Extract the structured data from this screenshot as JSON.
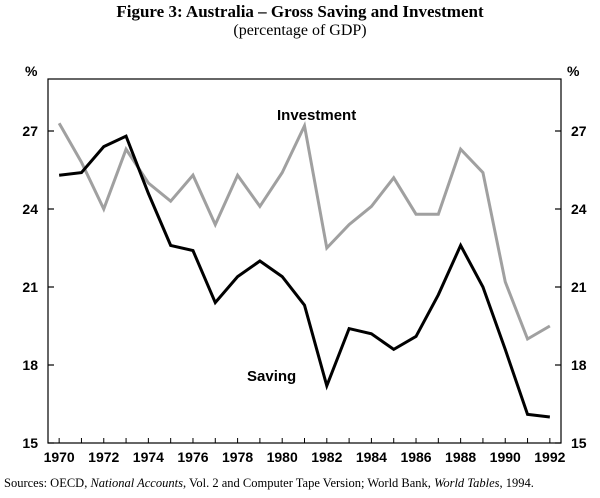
{
  "figure": {
    "title": "Figure 3: Australia – Gross Saving and Investment",
    "subtitle": "(percentage of GDP)"
  },
  "source": {
    "prefix": "Sources: OECD, ",
    "publication1": "National Accounts",
    "middle": ", Vol. 2 and Computer Tape Version; World Bank, ",
    "publication2": "World Tables",
    "suffix": ", 1994."
  },
  "colors": {
    "saving": "#000000",
    "investment": "#a0a0a0",
    "axis": "#000000"
  },
  "chart_data": {
    "type": "line",
    "title": "Figure 3: Australia – Gross Saving and Investment",
    "subtitle": "(percentage of GDP)",
    "ylabel_left": "%",
    "ylabel_right": "%",
    "ylim": [
      15,
      29
    ],
    "yticks": [
      15,
      18,
      21,
      24,
      27
    ],
    "xlim": [
      1969.5,
      1992.5
    ],
    "xticks": [
      1970,
      1972,
      1974,
      1976,
      1978,
      1980,
      1982,
      1984,
      1986,
      1988,
      1990,
      1992
    ],
    "x": [
      1970,
      1971,
      1972,
      1973,
      1974,
      1975,
      1976,
      1977,
      1978,
      1979,
      1980,
      1981,
      1982,
      1983,
      1984,
      1985,
      1986,
      1987,
      1988,
      1989,
      1990,
      1991,
      1992
    ],
    "series": [
      {
        "name": "Saving",
        "label": "Saving",
        "color": "#000000",
        "values": [
          25.3,
          25.4,
          26.4,
          26.8,
          24.6,
          22.6,
          22.4,
          20.4,
          21.4,
          22.0,
          21.4,
          20.3,
          17.2,
          19.4,
          19.2,
          18.6,
          19.1,
          20.7,
          22.6,
          21.0,
          18.6,
          16.1,
          16.0
        ]
      },
      {
        "name": "Investment",
        "label": "Investment",
        "color": "#a0a0a0",
        "values": [
          27.3,
          25.8,
          24.0,
          26.3,
          25.0,
          24.3,
          25.3,
          23.4,
          25.3,
          24.1,
          25.4,
          27.2,
          22.5,
          23.4,
          24.1,
          25.2,
          23.8,
          23.8,
          26.3,
          25.4,
          21.2,
          19.0,
          19.5
        ]
      }
    ]
  }
}
